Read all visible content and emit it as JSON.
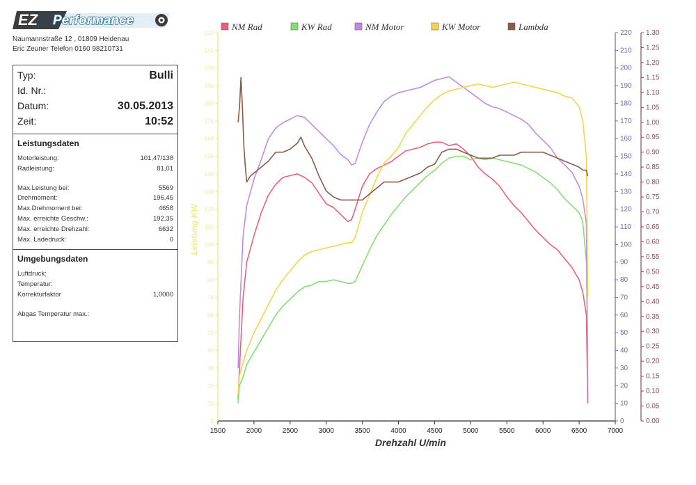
{
  "header": {
    "logo_ez": "EZ",
    "logo_text": "Performance",
    "address_line1": "Naumannstraße 12 , 01809 Heidenau",
    "address_line2": "Eric Zeuner  Telefon 0160 98210731"
  },
  "info": {
    "typ_label": "Typ:",
    "typ_value": "Bulli",
    "id_label": "Id. Nr.:",
    "id_value": "",
    "datum_label": "Datum:",
    "datum_value": "30.05.2013",
    "zeit_label": "Zeit:",
    "zeit_value": "10:52"
  },
  "leistung": {
    "title": "Leistungsdaten",
    "rows": [
      {
        "label": "Motorleistung:",
        "value": "101,47/138"
      },
      {
        "label": "Radleistung:",
        "value": "81,01"
      },
      {
        "label": "Max.Leistung bei:",
        "value": "5569"
      },
      {
        "label": "Drehmoment:",
        "value": "196,45"
      },
      {
        "label": "Max.Drehmoment bei:",
        "value": "4658"
      },
      {
        "label": "Max. erreichte Geschw.:",
        "value": "192,35"
      },
      {
        "label": "Max. erreichte Drehzahl:",
        "value": "6632"
      },
      {
        "label": "Max. Ladedruck:",
        "value": "0"
      }
    ]
  },
  "umgebung": {
    "title": "Umgebungsdaten",
    "rows": [
      {
        "label": "Luftdruck:",
        "value": ""
      },
      {
        "label": "Temperatur:",
        "value": ""
      },
      {
        "label": "Korrekturfaktor",
        "value": "1,0000"
      },
      {
        "label": "Abgas Temperatur max.:",
        "value": ""
      }
    ]
  },
  "colors": {
    "nm_rad": "#e8607a",
    "kw_rad": "#82e070",
    "nm_motor": "#c08ce0",
    "kw_motor": "#f5d24a",
    "lambda": "#8b5a48",
    "axis": "#6a6aa8",
    "lambda_axis": "#8a4a5a",
    "left_axis": "#f2e98a"
  },
  "chart_data": {
    "type": "line",
    "xlabel": "Drehzahl U/min",
    "ylabel_left": "Leistung KW",
    "xlim": [
      1500,
      7000
    ],
    "x_ticks": [
      1500,
      2000,
      2500,
      3000,
      3500,
      4000,
      4500,
      5000,
      5500,
      6000,
      6500,
      7000
    ],
    "ylim_left": [
      0,
      220
    ],
    "y_ticks_left": [
      0,
      10,
      20,
      30,
      40,
      50,
      60,
      70,
      80,
      90,
      100,
      110,
      120,
      130,
      140,
      150,
      160,
      170,
      180,
      190,
      200,
      210,
      220
    ],
    "ylim_right1": [
      0,
      220
    ],
    "y_ticks_right1": [
      0,
      10,
      20,
      30,
      40,
      50,
      60,
      70,
      80,
      90,
      100,
      110,
      120,
      130,
      140,
      150,
      160,
      170,
      180,
      190,
      200,
      210,
      220
    ],
    "ylim_right2": [
      0,
      1.3
    ],
    "y_ticks_right2": [
      "0.00",
      "0.05",
      "0.10",
      "0.15",
      "0.20",
      "0.25",
      "0.30",
      "0.35",
      "0.40",
      "0.45",
      "0.50",
      "0.55",
      "0.60",
      "0.65",
      "0.70",
      "0.75",
      "0.80",
      "0.85",
      "0.90",
      "0.95",
      "1.00",
      "1.05",
      "1.10",
      "1.15",
      "1.20",
      "1.25",
      "1.30"
    ],
    "legend_position": "top",
    "series": [
      {
        "name": "NM Rad",
        "axis": "right1",
        "x": [
          1780,
          1800,
          1850,
          1900,
          2000,
          2100,
          2200,
          2300,
          2400,
          2500,
          2600,
          2700,
          2800,
          2900,
          3000,
          3100,
          3200,
          3300,
          3350,
          3400,
          3500,
          3600,
          3700,
          3800,
          3900,
          4000,
          4100,
          4200,
          4300,
          4400,
          4500,
          4600,
          4700,
          4800,
          4900,
          5000,
          5100,
          5200,
          5300,
          5400,
          5500,
          5600,
          5700,
          5800,
          5900,
          6000,
          6100,
          6200,
          6300,
          6400,
          6500,
          6550,
          6600,
          6620
        ],
        "y": [
          12,
          30,
          70,
          90,
          105,
          118,
          128,
          134,
          138,
          139,
          140,
          138,
          135,
          129,
          123,
          121,
          117,
          113,
          114,
          120,
          133,
          140,
          143,
          145,
          147,
          150,
          153,
          154,
          155,
          157,
          158,
          158,
          156,
          157,
          154,
          150,
          144,
          140,
          137,
          133,
          127,
          122,
          118,
          113,
          108,
          104,
          100,
          97,
          92,
          87,
          80,
          73,
          60,
          10
        ]
      },
      {
        "name": "KW Rad",
        "axis": "left",
        "x": [
          1780,
          1800,
          1850,
          1900,
          2000,
          2100,
          2200,
          2300,
          2400,
          2500,
          2600,
          2700,
          2800,
          2900,
          3000,
          3100,
          3200,
          3300,
          3350,
          3400,
          3500,
          3600,
          3700,
          3800,
          3900,
          4000,
          4100,
          4200,
          4300,
          4400,
          4500,
          4600,
          4700,
          4800,
          4900,
          5000,
          5100,
          5200,
          5300,
          5400,
          5500,
          5600,
          5700,
          5800,
          5900,
          6000,
          6100,
          6200,
          6300,
          6400,
          6500,
          6550,
          6600,
          6620
        ],
        "y": [
          10,
          20,
          25,
          32,
          39,
          46,
          53,
          60,
          65,
          69,
          73,
          76,
          77,
          79,
          79,
          80,
          79,
          78,
          78,
          79,
          88,
          97,
          105,
          111,
          117,
          122,
          127,
          131,
          135,
          139,
          142,
          146,
          149,
          150,
          150,
          148,
          149,
          148,
          149,
          148,
          147,
          146,
          145,
          143,
          141,
          138,
          135,
          131,
          126,
          122,
          118,
          113,
          90,
          40
        ]
      },
      {
        "name": "NM Motor",
        "axis": "right1",
        "x": [
          1780,
          1800,
          1850,
          1900,
          2000,
          2100,
          2200,
          2300,
          2400,
          2500,
          2600,
          2700,
          2800,
          2900,
          3000,
          3100,
          3200,
          3300,
          3350,
          3400,
          3500,
          3600,
          3700,
          3800,
          3900,
          4000,
          4100,
          4200,
          4300,
          4400,
          4500,
          4600,
          4700,
          4800,
          4900,
          5000,
          5100,
          5200,
          5300,
          5400,
          5500,
          5600,
          5700,
          5800,
          5900,
          6000,
          6100,
          6200,
          6300,
          6400,
          6500,
          6550,
          6600,
          6620
        ],
        "y": [
          30,
          60,
          105,
          122,
          137,
          148,
          160,
          166,
          169,
          171,
          173,
          172,
          168,
          164,
          160,
          156,
          151,
          148,
          145,
          146,
          158,
          168,
          175,
          181,
          184,
          186,
          187,
          188,
          189,
          191,
          193,
          194,
          195,
          192,
          189,
          186,
          183,
          180,
          178,
          177,
          175,
          173,
          171,
          168,
          163,
          159,
          155,
          149,
          145,
          141,
          133,
          126,
          112,
          20
        ]
      },
      {
        "name": "KW Motor",
        "axis": "left",
        "x": [
          1780,
          1800,
          1850,
          1900,
          2000,
          2100,
          2200,
          2300,
          2400,
          2500,
          2600,
          2700,
          2800,
          2900,
          3000,
          3100,
          3200,
          3300,
          3350,
          3400,
          3500,
          3600,
          3700,
          3800,
          3900,
          4000,
          4100,
          4200,
          4300,
          4400,
          4500,
          4600,
          4700,
          4800,
          4900,
          5000,
          5100,
          5200,
          5300,
          5400,
          5500,
          5600,
          5700,
          5800,
          5900,
          6000,
          6100,
          6200,
          6300,
          6400,
          6500,
          6550,
          6600,
          6620
        ],
        "y": [
          15,
          26,
          33,
          40,
          50,
          58,
          66,
          74,
          80,
          85,
          90,
          94,
          96,
          97,
          98,
          99,
          100,
          101,
          101,
          104,
          118,
          128,
          138,
          146,
          150,
          155,
          163,
          168,
          173,
          178,
          182,
          185,
          187,
          188,
          189,
          190,
          191,
          190,
          189,
          190,
          191,
          192,
          191,
          190,
          189,
          188,
          187,
          186,
          184,
          183,
          178,
          170,
          150,
          70
        ]
      },
      {
        "name": "Lambda",
        "axis": "right2",
        "x": [
          1780,
          1800,
          1820,
          1840,
          1860,
          1880,
          1900,
          1950,
          2000,
          2100,
          2200,
          2300,
          2400,
          2500,
          2600,
          2650,
          2700,
          2800,
          2900,
          3000,
          3100,
          3200,
          3300,
          3400,
          3500,
          3600,
          3700,
          3800,
          3900,
          4000,
          4100,
          4200,
          4300,
          4400,
          4500,
          4600,
          4700,
          4800,
          4900,
          5000,
          5100,
          5200,
          5300,
          5400,
          5500,
          5600,
          5700,
          5800,
          5900,
          6000,
          6100,
          6200,
          6300,
          6400,
          6500,
          6550,
          6600,
          6620
        ],
        "y": [
          1.0,
          1.05,
          1.15,
          1.05,
          0.92,
          0.85,
          0.8,
          0.82,
          0.83,
          0.85,
          0.87,
          0.9,
          0.9,
          0.91,
          0.93,
          0.95,
          0.92,
          0.88,
          0.82,
          0.77,
          0.75,
          0.74,
          0.74,
          0.74,
          0.74,
          0.76,
          0.78,
          0.8,
          0.8,
          0.8,
          0.81,
          0.82,
          0.83,
          0.85,
          0.86,
          0.9,
          0.91,
          0.91,
          0.9,
          0.89,
          0.88,
          0.88,
          0.88,
          0.89,
          0.89,
          0.89,
          0.9,
          0.9,
          0.9,
          0.9,
          0.89,
          0.88,
          0.87,
          0.86,
          0.85,
          0.84,
          0.84,
          0.82
        ]
      }
    ]
  }
}
